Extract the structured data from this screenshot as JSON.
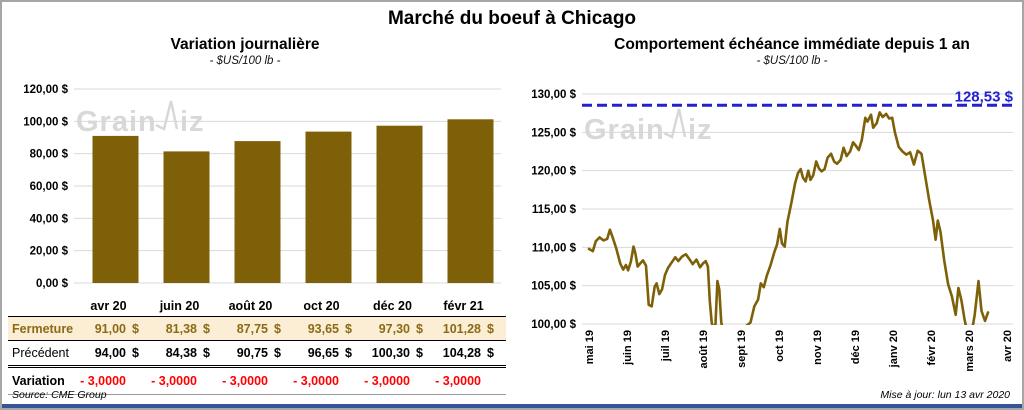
{
  "title": "Marché du boeuf à Chicago",
  "watermark": "GrainWiz",
  "colors": {
    "gold": "#7D6008",
    "gold_text": "#8a6a15",
    "fermeture_bg": "#FBEED5",
    "red": "#FF0000",
    "blue": "#2222CC",
    "grid": "#D9D9D9",
    "watermark": "#d8d8d8",
    "navy": "#35549B"
  },
  "left_chart": {
    "title": "Variation  journalière",
    "subtitle": "- $US/100 lb -"
  },
  "right_chart": {
    "title": "Comportement  échéance immédiate depuis 1 an",
    "subtitle": "- $US/100 lb -"
  },
  "table": {
    "columns": [
      "avr 20",
      "juin 20",
      "août 20",
      "oct 20",
      "déc 20",
      "févr 21"
    ],
    "currency": "$",
    "rows": [
      {
        "id": "fermeture",
        "label": "Fermeture",
        "currency": true,
        "values": [
          "91,00",
          "81,38",
          "87,75",
          "93,65",
          "97,30",
          "101,28"
        ]
      },
      {
        "id": "precedent",
        "label": "Précédent",
        "currency": true,
        "values": [
          "94,00",
          "84,38",
          "90,75",
          "96,65",
          "100,30",
          "104,28"
        ]
      },
      {
        "id": "variation",
        "label": "Variation",
        "currency": false,
        "values": [
          "- 3,0000",
          "- 3,0000",
          "- 3,0000",
          "- 3,0000",
          "- 3,0000",
          "- 3,0000"
        ]
      }
    ]
  },
  "footer": {
    "source": "Source: CME Group",
    "updated": "Mise à jour: lun 13 avr 2020"
  },
  "chart_data": [
    {
      "type": "bar",
      "title": "Variation journalière",
      "subtitle": "- $US/100 lb -",
      "categories": [
        "avr 20",
        "juin 20",
        "août 20",
        "oct 20",
        "déc 20",
        "févr 21"
      ],
      "values": [
        91.0,
        81.38,
        87.75,
        93.65,
        97.3,
        101.28
      ],
      "ylim": [
        0,
        120
      ],
      "ytick_step": 20,
      "ytick_labels": [
        "120,00 $",
        "100,00 $",
        "80,00 $",
        "60,00 $",
        "40,00 $",
        "20,00 $",
        "0,00 $"
      ],
      "bar_color": "#7D6008",
      "grid": true,
      "xlabel": "",
      "ylabel": "$US/100 lb"
    },
    {
      "type": "line",
      "title": "Comportement échéance immédiate depuis 1 an",
      "subtitle": "- $US/100 lb -",
      "x_labels": [
        "mai 19",
        "juin 19",
        "juil 19",
        "août 19",
        "sept 19",
        "oct 19",
        "nov 19",
        "déc 19",
        "janv 20",
        "févr 20",
        "mars 20",
        "avr 20"
      ],
      "ylim": [
        100,
        130
      ],
      "ytick_step": 5,
      "ytick_labels": [
        "130,00 $",
        "125,00 $",
        "120,00 $",
        "115,00 $",
        "110,00 $",
        "105,00 $",
        "100,00 $"
      ],
      "line_color": "#7D6008",
      "grid": true,
      "ref_line": {
        "value": 128.53,
        "label": "128,53 $",
        "color": "#2222CC",
        "style": "dashed"
      },
      "points": [
        [
          0.0,
          109.8
        ],
        [
          0.1,
          109.5
        ],
        [
          0.18,
          110.8
        ],
        [
          0.28,
          111.3
        ],
        [
          0.38,
          110.9
        ],
        [
          0.48,
          111.1
        ],
        [
          0.55,
          112.3
        ],
        [
          0.63,
          111.2
        ],
        [
          0.72,
          109.8
        ],
        [
          0.82,
          107.9
        ],
        [
          0.9,
          107.1
        ],
        [
          0.97,
          107.7
        ],
        [
          1.03,
          107.0
        ],
        [
          1.1,
          108.1
        ],
        [
          1.17,
          110.1
        ],
        [
          1.22,
          109.2
        ],
        [
          1.28,
          107.5
        ],
        [
          1.35,
          107.9
        ],
        [
          1.42,
          108.3
        ],
        [
          1.5,
          107.6
        ],
        [
          1.57,
          102.5
        ],
        [
          1.65,
          102.3
        ],
        [
          1.73,
          104.9
        ],
        [
          1.78,
          105.3
        ],
        [
          1.85,
          103.9
        ],
        [
          1.92,
          104.5
        ],
        [
          2.0,
          106.4
        ],
        [
          2.08,
          107.3
        ],
        [
          2.17,
          108.0
        ],
        [
          2.27,
          108.7
        ],
        [
          2.35,
          108.2
        ],
        [
          2.45,
          108.8
        ],
        [
          2.55,
          109.1
        ],
        [
          2.65,
          108.4
        ],
        [
          2.73,
          107.8
        ],
        [
          2.83,
          108.4
        ],
        [
          2.92,
          107.4
        ],
        [
          3.0,
          107.9
        ],
        [
          3.07,
          108.2
        ],
        [
          3.13,
          107.5
        ],
        [
          3.18,
          103.0
        ],
        [
          3.23,
          100.2
        ],
        [
          3.28,
          99.3
        ],
        [
          3.33,
          100.0
        ],
        [
          3.38,
          105.6
        ],
        [
          3.43,
          104.5
        ],
        [
          3.48,
          100.3
        ],
        [
          3.53,
          98.8
        ],
        [
          3.65,
          98.2
        ],
        [
          3.8,
          98.5
        ],
        [
          3.95,
          99.2
        ],
        [
          4.05,
          98.6
        ],
        [
          4.15,
          99.8
        ],
        [
          4.25,
          100.2
        ],
        [
          4.35,
          102.3
        ],
        [
          4.45,
          103.2
        ],
        [
          4.52,
          105.3
        ],
        [
          4.6,
          104.8
        ],
        [
          4.68,
          106.3
        ],
        [
          4.78,
          107.7
        ],
        [
          4.88,
          109.4
        ],
        [
          4.95,
          110.4
        ],
        [
          5.02,
          112.4
        ],
        [
          5.08,
          110.5
        ],
        [
          5.15,
          110.1
        ],
        [
          5.22,
          113.3
        ],
        [
          5.32,
          115.7
        ],
        [
          5.42,
          118.3
        ],
        [
          5.5,
          119.7
        ],
        [
          5.57,
          120.2
        ],
        [
          5.63,
          119.1
        ],
        [
          5.7,
          118.6
        ],
        [
          5.77,
          120.0
        ],
        [
          5.83,
          118.8
        ],
        [
          5.9,
          119.4
        ],
        [
          5.98,
          121.2
        ],
        [
          6.05,
          120.3
        ],
        [
          6.12,
          119.9
        ],
        [
          6.2,
          120.2
        ],
        [
          6.28,
          121.7
        ],
        [
          6.37,
          122.2
        ],
        [
          6.45,
          121.2
        ],
        [
          6.53,
          120.9
        ],
        [
          6.62,
          121.4
        ],
        [
          6.7,
          123.0
        ],
        [
          6.78,
          121.9
        ],
        [
          6.87,
          122.5
        ],
        [
          6.95,
          123.7
        ],
        [
          7.03,
          123.2
        ],
        [
          7.1,
          122.7
        ],
        [
          7.18,
          124.0
        ],
        [
          7.27,
          126.9
        ],
        [
          7.33,
          126.4
        ],
        [
          7.42,
          127.3
        ],
        [
          7.48,
          125.6
        ],
        [
          7.57,
          126.2
        ],
        [
          7.65,
          127.6
        ],
        [
          7.73,
          127.0
        ],
        [
          7.82,
          127.4
        ],
        [
          7.9,
          126.8
        ],
        [
          7.98,
          126.9
        ],
        [
          8.05,
          125.0
        ],
        [
          8.15,
          123.1
        ],
        [
          8.25,
          122.5
        ],
        [
          8.35,
          122.1
        ],
        [
          8.45,
          122.4
        ],
        [
          8.55,
          120.8
        ],
        [
          8.65,
          122.6
        ],
        [
          8.75,
          122.2
        ],
        [
          8.85,
          119.2
        ],
        [
          8.95,
          116.2
        ],
        [
          9.05,
          113.6
        ],
        [
          9.12,
          111.0
        ],
        [
          9.18,
          113.5
        ],
        [
          9.25,
          112.0
        ],
        [
          9.35,
          108.2
        ],
        [
          9.45,
          105.2
        ],
        [
          9.55,
          103.6
        ],
        [
          9.65,
          101.2
        ],
        [
          9.72,
          104.7
        ],
        [
          9.8,
          103.1
        ],
        [
          9.88,
          100.7
        ],
        [
          9.95,
          99.0
        ],
        [
          10.05,
          98.3
        ],
        [
          10.15,
          101.2
        ],
        [
          10.25,
          105.6
        ],
        [
          10.33,
          101.7
        ],
        [
          10.42,
          100.4
        ],
        [
          10.5,
          101.5
        ]
      ]
    }
  ]
}
